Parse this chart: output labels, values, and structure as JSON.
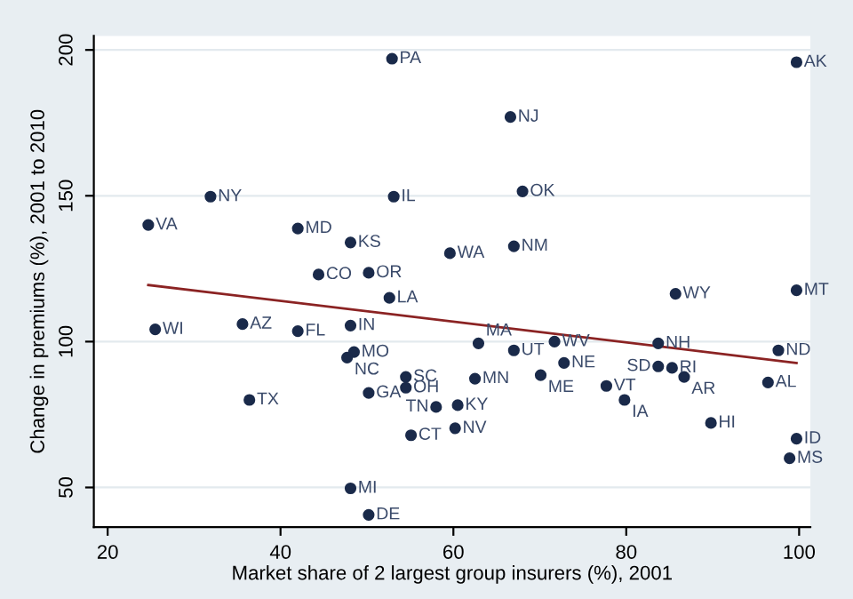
{
  "chart_data": {
    "type": "scatter",
    "xlabel": "Market share of 2 largest group insurers (%), 2001",
    "ylabel": "Change in premiums (%), 2001 to 2010",
    "xlim": [
      18.4,
      101.3
    ],
    "ylim": [
      36.4,
      204.8
    ],
    "xticks": [
      20,
      40,
      60,
      80,
      100
    ],
    "yticks": [
      50,
      100,
      150,
      200
    ],
    "grid": "y",
    "legend": false,
    "marker": "circle",
    "series": [
      {
        "color": "#1a2a4a",
        "x": [
          52.9,
          31.9,
          53.1,
          24.7,
          42.0,
          48.1,
          44.4,
          50.2,
          52.6,
          66.6,
          68.0,
          59.6,
          67.0,
          85.7,
          99.7,
          99.7,
          25.5,
          35.6,
          42.0,
          48.1,
          48.5,
          47.7,
          54.5,
          54.5,
          50.2,
          36.4,
          48.1,
          50.2,
          55.1,
          58.0,
          60.5,
          60.2,
          62.5,
          62.9,
          67.0,
          71.7,
          72.8,
          70.1,
          77.7,
          79.8,
          83.7,
          83.7,
          85.3,
          86.7,
          89.8,
          97.6,
          96.4,
          99.7,
          98.9
        ],
        "values": [
          197,
          149.7,
          149.7,
          140,
          138.8,
          134,
          123,
          123.6,
          115,
          177,
          151.5,
          130.3,
          132.7,
          116.4,
          117.6,
          195.8,
          104.2,
          106,
          103.6,
          105.5,
          96.4,
          94.5,
          87.9,
          84.2,
          82.4,
          80,
          49.7,
          40.6,
          67.9,
          77.6,
          78.2,
          70.3,
          87.3,
          99.4,
          97,
          100,
          92.7,
          88.5,
          84.8,
          80,
          99.4,
          91.5,
          91,
          87.9,
          72.1,
          97,
          86,
          66.7,
          60
        ]
      },
      {
        "type": "line",
        "color": "#8b2323",
        "line_style": "solid",
        "marker": "none",
        "x": [
          24.7,
          99.7
        ],
        "values": [
          119.4,
          92.7
        ]
      }
    ],
    "annotations": [
      {
        "text": "PA",
        "x": 52.9,
        "y": 197
      },
      {
        "text": "NY",
        "x": 31.9,
        "y": 149.7
      },
      {
        "text": "IL",
        "x": 53.1,
        "y": 149.7
      },
      {
        "text": "VA",
        "x": 24.7,
        "y": 140
      },
      {
        "text": "MD",
        "x": 42.0,
        "y": 138.8
      },
      {
        "text": "KS",
        "x": 48.1,
        "y": 134
      },
      {
        "text": "CO",
        "x": 44.4,
        "y": 123
      },
      {
        "text": "OR",
        "x": 50.2,
        "y": 123.6
      },
      {
        "text": "LA",
        "x": 52.6,
        "y": 115
      },
      {
        "text": "NJ",
        "x": 66.6,
        "y": 177
      },
      {
        "text": "OK",
        "x": 68.0,
        "y": 151.5
      },
      {
        "text": "WA",
        "x": 59.6,
        "y": 130.3
      },
      {
        "text": "NM",
        "x": 67.0,
        "y": 132.7
      },
      {
        "text": "WY",
        "x": 85.7,
        "y": 116.4
      },
      {
        "text": "MT",
        "x": 99.7,
        "y": 117.6
      },
      {
        "text": "AK",
        "x": 99.7,
        "y": 195.8
      },
      {
        "text": "WI",
        "x": 25.5,
        "y": 104.2
      },
      {
        "text": "AZ",
        "x": 35.6,
        "y": 106
      },
      {
        "text": "FL",
        "x": 42.0,
        "y": 103.6
      },
      {
        "text": "IN",
        "x": 48.1,
        "y": 105.5
      },
      {
        "text": "MO",
        "x": 48.5,
        "y": 96.4
      },
      {
        "text": "NC",
        "x": 47.7,
        "y": 94.5
      },
      {
        "text": "SC",
        "x": 54.5,
        "y": 87.9
      },
      {
        "text": "OH",
        "x": 54.5,
        "y": 84.2
      },
      {
        "text": "GA",
        "x": 50.2,
        "y": 82.4
      },
      {
        "text": "TX",
        "x": 36.4,
        "y": 80
      },
      {
        "text": "MI",
        "x": 48.1,
        "y": 49.7
      },
      {
        "text": "DE",
        "x": 50.2,
        "y": 40.6
      },
      {
        "text": "CT",
        "x": 55.1,
        "y": 67.9
      },
      {
        "text": "TN",
        "x": 58.0,
        "y": 77.6
      },
      {
        "text": "KY",
        "x": 60.5,
        "y": 78.2
      },
      {
        "text": "NV",
        "x": 60.2,
        "y": 70.3
      },
      {
        "text": "MN",
        "x": 62.5,
        "y": 87.3
      },
      {
        "text": "MA",
        "x": 62.9,
        "y": 99.4
      },
      {
        "text": "UT",
        "x": 67.0,
        "y": 97
      },
      {
        "text": "WV",
        "x": 71.7,
        "y": 100
      },
      {
        "text": "NE",
        "x": 72.8,
        "y": 92.7
      },
      {
        "text": "ME",
        "x": 70.1,
        "y": 88.5
      },
      {
        "text": "VT",
        "x": 77.7,
        "y": 84.8
      },
      {
        "text": "IA",
        "x": 79.8,
        "y": 80
      },
      {
        "text": "NH",
        "x": 83.7,
        "y": 99.4
      },
      {
        "text": "SD",
        "x": 83.7,
        "y": 91.5
      },
      {
        "text": "RI",
        "x": 85.3,
        "y": 91
      },
      {
        "text": "AR",
        "x": 86.7,
        "y": 87.9
      },
      {
        "text": "HI",
        "x": 89.8,
        "y": 72.1
      },
      {
        "text": "ND",
        "x": 97.6,
        "y": 97
      },
      {
        "text": "AL",
        "x": 96.4,
        "y": 86
      },
      {
        "text": "ID",
        "x": 99.7,
        "y": 66.7
      },
      {
        "text": "MS",
        "x": 98.9,
        "y": 60
      }
    ]
  }
}
